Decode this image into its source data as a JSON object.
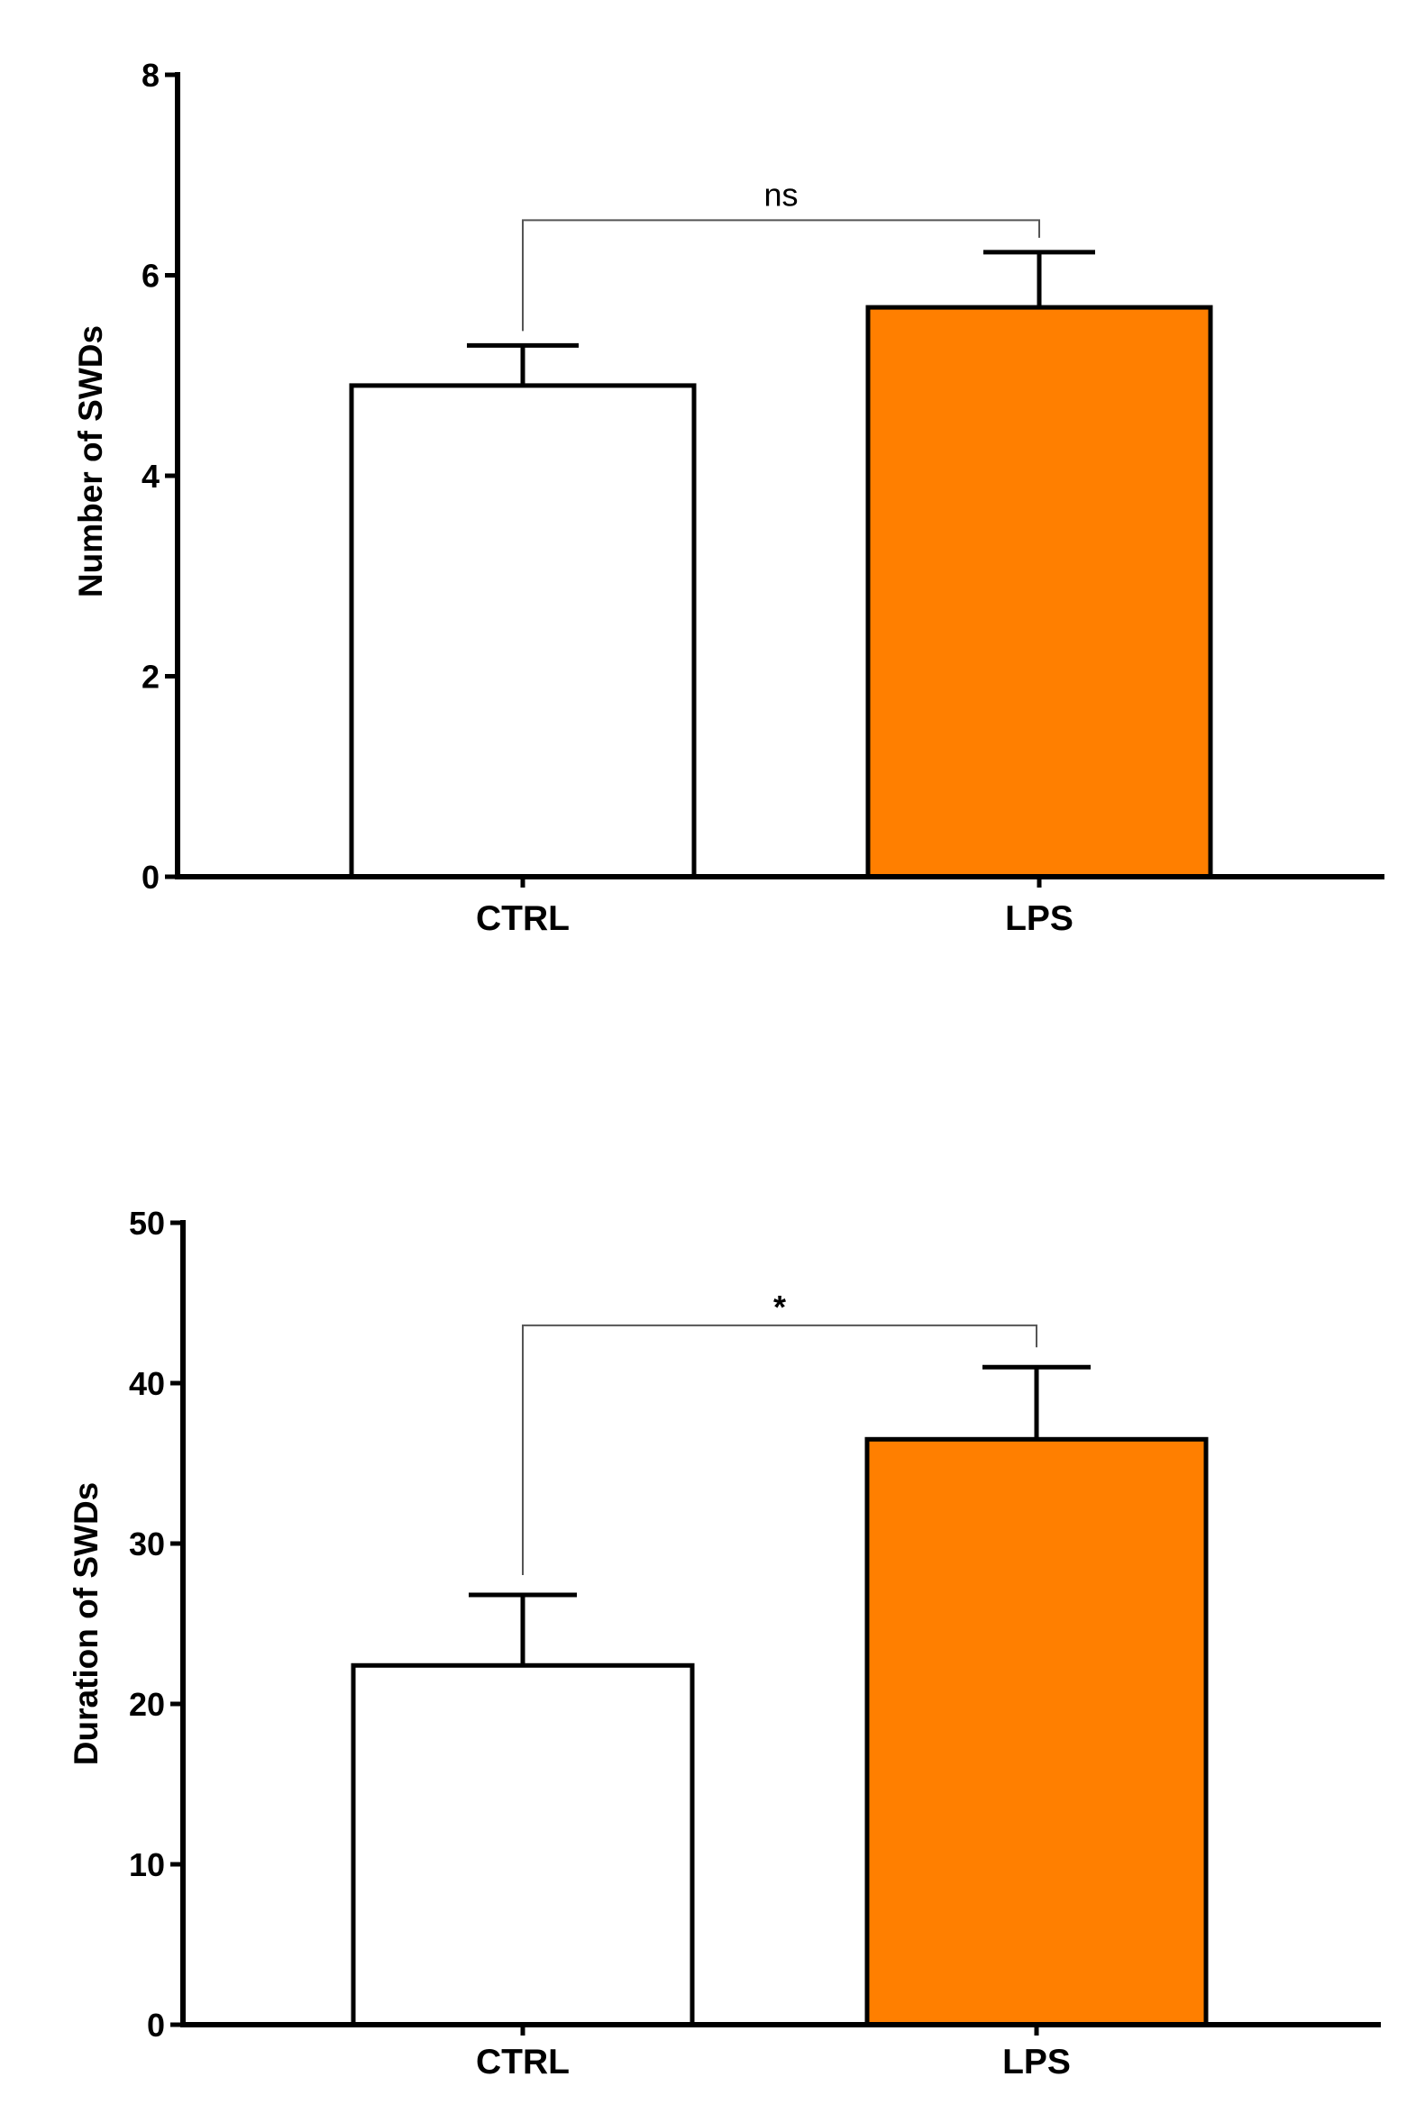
{
  "chart_data": [
    {
      "type": "bar",
      "categories": [
        "CTRL",
        "LPS"
      ],
      "values": [
        4.9,
        5.68
      ],
      "errors": [
        0.4,
        0.55
      ],
      "colors": [
        "#ffffff",
        "#ff7f00"
      ],
      "ylabel": "Number of SWDs",
      "ylim": [
        0,
        8
      ],
      "yticks": [
        0,
        2,
        4,
        6,
        8
      ],
      "significance": {
        "from": 0,
        "to": 1,
        "label": "ns",
        "level": 6.55
      }
    },
    {
      "type": "bar",
      "categories": [
        "CTRL",
        "LPS"
      ],
      "values": [
        22.4,
        36.5
      ],
      "errors": [
        4.4,
        4.5
      ],
      "colors": [
        "#ffffff",
        "#ff7f00"
      ],
      "ylabel": "Duration of SWDs",
      "ylim": [
        0,
        50
      ],
      "yticks": [
        0,
        10,
        20,
        30,
        40,
        50
      ],
      "significance": {
        "from": 0,
        "to": 1,
        "label": "*",
        "level": 43.6
      }
    }
  ]
}
